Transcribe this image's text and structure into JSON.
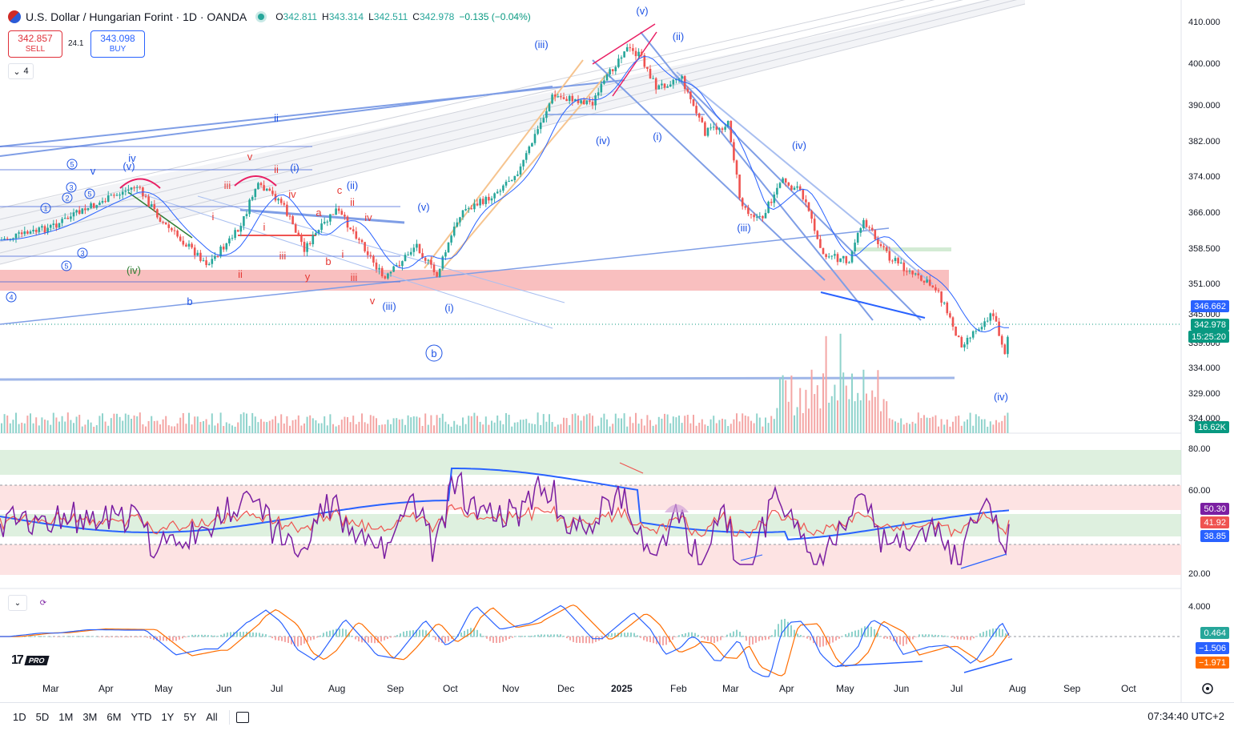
{
  "header": {
    "symbol_title": "U.S. Dollar / Hungarian Forint · 1D · OANDA",
    "ohlc": [
      {
        "key": "O",
        "value": "342.811"
      },
      {
        "key": "H",
        "value": "343.314"
      },
      {
        "key": "L",
        "value": "342.511"
      },
      {
        "key": "C",
        "value": "342.978"
      }
    ],
    "change": "−0.135 (−0.04%)"
  },
  "trade": {
    "sell_price": "342.857",
    "sell_label": "SELL",
    "spread": "24.1",
    "buy_price": "343.098",
    "buy_label": "BUY"
  },
  "indicators_toggle": "4",
  "price_axis": {
    "ticks": [
      "410.000",
      "400.000",
      "390.000",
      "382.000",
      "374.000",
      "366.000",
      "358.500",
      "351.000",
      "334.000",
      "329.000"
    ],
    "partial_ticks": [
      "345.000",
      "339.000",
      "324.000"
    ],
    "tags": {
      "ma": "346.662",
      "last_price": "342.978",
      "countdown": "15:25:20",
      "volume": "16.62K"
    }
  },
  "rsi_axis": {
    "ticks": [
      "80.00",
      "60.00",
      "20.00"
    ],
    "tags": {
      "rsi": "50.30",
      "ma": "41.92",
      "band": "38.85"
    }
  },
  "macd_axis": {
    "ticks": [
      "4.000"
    ],
    "tags": {
      "hist": "0.464",
      "macd": "−1.506",
      "signal": "−1.971"
    }
  },
  "time_axis": [
    "Mar",
    "Apr",
    "May",
    "Jun",
    "Jul",
    "Aug",
    "Sep",
    "Oct",
    "Nov",
    "Dec",
    "2025",
    "Feb",
    "Mar",
    "Apr",
    "May",
    "Jun",
    "Jul",
    "Aug",
    "Sep",
    "Oct"
  ],
  "ranges": [
    "1D",
    "5D",
    "1M",
    "3M",
    "6M",
    "YTD",
    "1Y",
    "5Y",
    "All"
  ],
  "clock": "07:34:40 UTC+2",
  "brand": {
    "logo": "17",
    "pro": "PRO"
  },
  "wave_labels": {
    "blue": [
      "(v)",
      "(iii)",
      "(ii)",
      "(iv)",
      "(i)",
      "(iv)",
      "(i)",
      "(ii)",
      "(iii)",
      "(v)",
      "(iv)",
      "ii",
      "iv",
      "v",
      "(i)",
      "(v)",
      "b",
      "(iii)"
    ],
    "red": [
      "v",
      "ii",
      "iii",
      "i",
      "iv",
      "c",
      "ii",
      "a",
      "iv",
      "b",
      "i",
      "iii",
      "ii",
      "y",
      "iii",
      "v",
      "i"
    ],
    "green": [
      "(iv)"
    ],
    "circle_b": "b",
    "small_circles": [
      "1",
      "2",
      "3",
      "4",
      "5",
      "5",
      "3",
      "5"
    ]
  },
  "colors": {
    "up": "#26a69a",
    "down": "#ef5350",
    "price_line": "#089981",
    "ma_blue": "#2962ff",
    "rsi_purple": "#7b1fa2",
    "macd_signal": "#ff6d00",
    "zone_pink": "#f7a9aa",
    "zone_green": "#c8e6c9"
  },
  "icons": {
    "settings": "gear-icon",
    "calendar": "calendar-icon",
    "collapse": "chevron-down-icon",
    "refresh": "refresh-icon"
  }
}
